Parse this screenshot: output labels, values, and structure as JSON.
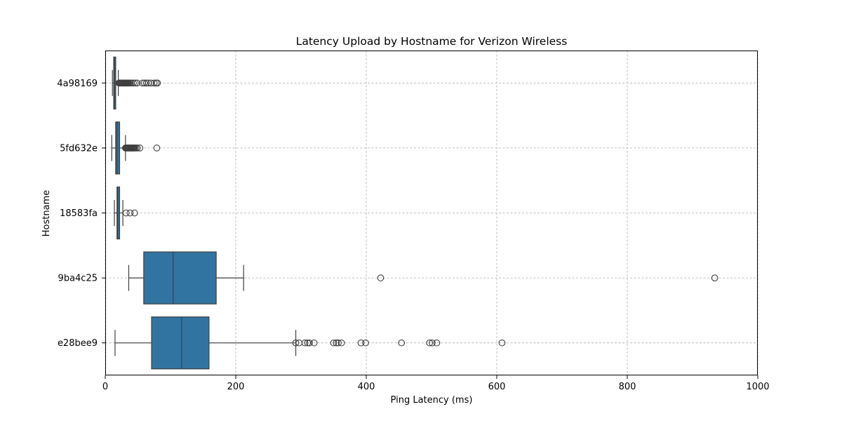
{
  "chart_data": {
    "type": "box",
    "orientation": "horizontal",
    "title": "Latency Upload by Hostname for Verizon Wireless",
    "xlabel": "Ping Latency (ms)",
    "ylabel": "Hostname",
    "xlim": [
      0,
      1000
    ],
    "xticks": [
      0,
      200,
      400,
      600,
      800,
      1000
    ],
    "grid": true,
    "box_color": "#3274a1",
    "categories": [
      "4a98169",
      "5fd632e",
      "18583fa",
      "9ba4c25",
      "e28bee9"
    ],
    "boxes": [
      {
        "category": "4a98169",
        "whisker_low": 11,
        "q1": 13,
        "median": 14,
        "q3": 16,
        "whisker_high": 20,
        "outliers": [
          21,
          22,
          23,
          24,
          25,
          26,
          27,
          28,
          29,
          30,
          31,
          32,
          33,
          34,
          35,
          36,
          38,
          40,
          43,
          46,
          49,
          57,
          60,
          63,
          66,
          70,
          75,
          78,
          80
        ]
      },
      {
        "category": "5fd632e",
        "whisker_low": 10,
        "q1": 16,
        "median": 18,
        "q3": 22,
        "whisker_high": 31,
        "outliers": [
          31,
          32,
          33,
          34,
          35,
          36,
          37,
          38,
          39,
          40,
          41,
          42,
          43,
          44,
          45,
          47,
          49,
          53,
          79
        ]
      },
      {
        "category": "18583fa",
        "whisker_low": 14,
        "q1": 18,
        "median": 19,
        "q3": 22,
        "whisker_high": 27,
        "outliers": [
          32,
          38,
          45
        ]
      },
      {
        "category": "9ba4c25",
        "whisker_low": 36,
        "q1": 59,
        "median": 104,
        "q3": 170,
        "whisker_high": 212,
        "outliers": [
          422,
          934
        ]
      },
      {
        "category": "e28bee9",
        "whisker_low": 15,
        "q1": 71,
        "median": 117,
        "q3": 159,
        "whisker_high": 292,
        "outliers": [
          292,
          297,
          306,
          310,
          313,
          320,
          350,
          354,
          357,
          362,
          392,
          399,
          454,
          497,
          501,
          508,
          608
        ]
      }
    ]
  }
}
